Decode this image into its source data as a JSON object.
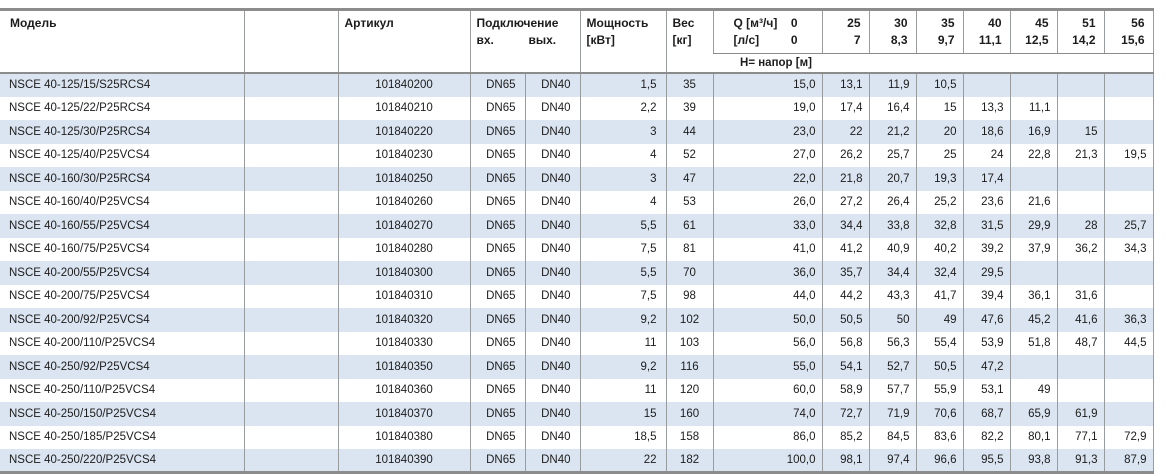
{
  "colors": {
    "row_alt_blue": "#dbe5f1",
    "border_thick": "#8c8c8c",
    "border_thin": "#999c9f",
    "text": "#1c1c1c"
  },
  "table": {
    "headers": {
      "model": "Модель",
      "artikul": "Артикул",
      "connection": "Подключение",
      "conn_in": "вх.",
      "conn_out": "вых.",
      "power_line1": "Мощность",
      "power_line2": "[кВт]",
      "weight_line1": "Вес",
      "weight_line2": "[кг]",
      "q_label": "Q [м³/ч]",
      "q_zero": "0",
      "ls_label": "[л/с]",
      "ls_zero": "0",
      "head_band": "Н= напор [м]",
      "flow_cols": [
        {
          "m3h": "25",
          "ls": "7"
        },
        {
          "m3h": "30",
          "ls": "8,3"
        },
        {
          "m3h": "35",
          "ls": "9,7"
        },
        {
          "m3h": "40",
          "ls": "11,1"
        },
        {
          "m3h": "45",
          "ls": "12,5"
        },
        {
          "m3h": "51",
          "ls": "14,2"
        },
        {
          "m3h": "56",
          "ls": "15,6"
        }
      ]
    },
    "rows": [
      {
        "model": "NSCE 40-125/15/S25RCS4",
        "artikul": "101840200",
        "in": "DN65",
        "out": "DN40",
        "power": "1,5",
        "weight": "35",
        "heads": [
          "15,0",
          "13,1",
          "11,9",
          "10,5",
          "",
          "",
          "",
          ""
        ]
      },
      {
        "model": "NSCE 40-125/22/P25RCS4",
        "artikul": "101840210",
        "in": "DN65",
        "out": "DN40",
        "power": "2,2",
        "weight": "39",
        "heads": [
          "19,0",
          "17,4",
          "16,4",
          "15",
          "13,3",
          "11,1",
          "",
          ""
        ]
      },
      {
        "model": "NSCE 40-125/30/P25RCS4",
        "artikul": "101840220",
        "in": "DN65",
        "out": "DN40",
        "power": "3",
        "weight": "44",
        "heads": [
          "23,0",
          "22",
          "21,2",
          "20",
          "18,6",
          "16,9",
          "15",
          ""
        ]
      },
      {
        "model": "NSCE 40-125/40/P25VCS4",
        "artikul": "101840230",
        "in": "DN65",
        "out": "DN40",
        "power": "4",
        "weight": "52",
        "heads": [
          "27,0",
          "26,2",
          "25,7",
          "25",
          "24",
          "22,8",
          "21,3",
          "19,5"
        ]
      },
      {
        "model": "NSCE 40-160/30/P25RCS4",
        "artikul": "101840250",
        "in": "DN65",
        "out": "DN40",
        "power": "3",
        "weight": "47",
        "heads": [
          "22,0",
          "21,8",
          "20,7",
          "19,3",
          "17,4",
          "",
          "",
          ""
        ]
      },
      {
        "model": "NSCE 40-160/40/P25VCS4",
        "artikul": "101840260",
        "in": "DN65",
        "out": "DN40",
        "power": "4",
        "weight": "53",
        "heads": [
          "26,0",
          "27,2",
          "26,4",
          "25,2",
          "23,6",
          "21,6",
          "",
          ""
        ]
      },
      {
        "model": "NSCE 40-160/55/P25VCS4",
        "artikul": "101840270",
        "in": "DN65",
        "out": "DN40",
        "power": "5,5",
        "weight": "61",
        "heads": [
          "33,0",
          "34,4",
          "33,8",
          "32,8",
          "31,5",
          "29,9",
          "28",
          "25,7"
        ]
      },
      {
        "model": "NSCE 40-160/75/P25VCS4",
        "artikul": "101840280",
        "in": "DN65",
        "out": "DN40",
        "power": "7,5",
        "weight": "81",
        "heads": [
          "41,0",
          "41,2",
          "40,9",
          "40,2",
          "39,2",
          "37,9",
          "36,2",
          "34,3"
        ]
      },
      {
        "model": "NSCE 40-200/55/P25VCS4",
        "artikul": "101840300",
        "in": "DN65",
        "out": "DN40",
        "power": "5,5",
        "weight": "70",
        "heads": [
          "36,0",
          "35,7",
          "34,4",
          "32,4",
          "29,5",
          "",
          "",
          ""
        ]
      },
      {
        "model": "NSCE 40-200/75/P25VCS4",
        "artikul": "101840310",
        "in": "DN65",
        "out": "DN40",
        "power": "7,5",
        "weight": "98",
        "heads": [
          "44,0",
          "44,2",
          "43,3",
          "41,7",
          "39,4",
          "36,1",
          "31,6",
          ""
        ]
      },
      {
        "model": "NSCE 40-200/92/P25VCS4",
        "artikul": "101840320",
        "in": "DN65",
        "out": "DN40",
        "power": "9,2",
        "weight": "102",
        "heads": [
          "50,0",
          "50,5",
          "50",
          "49",
          "47,6",
          "45,2",
          "41,6",
          "36,3"
        ]
      },
      {
        "model": "NSCE 40-200/110/P25VCS4",
        "artikul": "101840330",
        "in": "DN65",
        "out": "DN40",
        "power": "11",
        "weight": "103",
        "heads": [
          "56,0",
          "56,8",
          "56,3",
          "55,4",
          "53,9",
          "51,8",
          "48,7",
          "44,5"
        ]
      },
      {
        "model": "NSCE 40-250/92/P25VCS4",
        "artikul": "101840350",
        "in": "DN65",
        "out": "DN40",
        "power": "9,2",
        "weight": "116",
        "heads": [
          "55,0",
          "54,1",
          "52,7",
          "50,5",
          "47,2",
          "",
          "",
          ""
        ]
      },
      {
        "model": "NSCE 40-250/110/P25VCS4",
        "artikul": "101840360",
        "in": "DN65",
        "out": "DN40",
        "power": "11",
        "weight": "120",
        "heads": [
          "60,0",
          "58,9",
          "57,7",
          "55,9",
          "53,1",
          "49",
          "",
          ""
        ]
      },
      {
        "model": "NSCE 40-250/150/P25VCS4",
        "artikul": "101840370",
        "in": "DN65",
        "out": "DN40",
        "power": "15",
        "weight": "160",
        "heads": [
          "74,0",
          "72,7",
          "71,9",
          "70,6",
          "68,7",
          "65,9",
          "61,9",
          ""
        ]
      },
      {
        "model": "NSCE 40-250/185/P25VCS4",
        "artikul": "101840380",
        "in": "DN65",
        "out": "DN40",
        "power": "18,5",
        "weight": "158",
        "heads": [
          "86,0",
          "85,2",
          "84,5",
          "83,6",
          "82,2",
          "80,1",
          "77,1",
          "72,9"
        ]
      },
      {
        "model": "NSCE 40-250/220/P25VCS4",
        "artikul": "101840390",
        "in": "DN65",
        "out": "DN40",
        "power": "22",
        "weight": "182",
        "heads": [
          "100,0",
          "98,1",
          "97,4",
          "96,6",
          "95,5",
          "93,8",
          "91,3",
          "87,9"
        ]
      }
    ]
  }
}
